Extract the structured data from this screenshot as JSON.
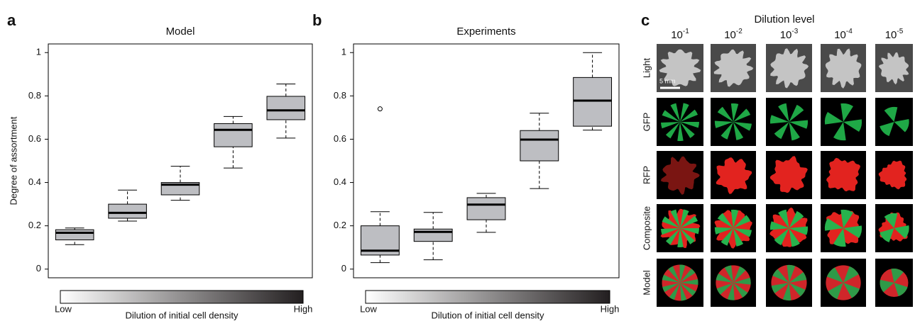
{
  "chart_data": [
    {
      "type": "box",
      "label": "a",
      "title": "Model",
      "ylabel": "Degree of assortment",
      "categories": [
        null,
        null,
        null,
        null,
        null
      ],
      "low": [
        0.113,
        0.222,
        0.318,
        0.467,
        0.605
      ],
      "q1": [
        0.135,
        0.235,
        0.343,
        0.565,
        0.69
      ],
      "median": [
        0.168,
        0.26,
        0.39,
        0.643,
        0.733
      ],
      "q3": [
        0.182,
        0.3,
        0.4,
        0.672,
        0.798
      ],
      "high": [
        0.19,
        0.365,
        0.475,
        0.705,
        0.855
      ],
      "outliers": [
        [],
        [],
        [],
        [],
        []
      ],
      "color": "#bdbec2",
      "ylim": [
        -0.04,
        1.04
      ],
      "yticks": [
        0,
        0.2,
        0.4,
        0.6,
        0.8,
        1
      ],
      "colorbar": {
        "low": "Low",
        "high": "High",
        "label": "Dilution of initial cell density"
      }
    },
    {
      "type": "box",
      "label": "b",
      "title": "Experiments",
      "categories": [
        null,
        null,
        null,
        null,
        null
      ],
      "low": [
        0.03,
        0.043,
        0.17,
        0.372,
        0.642
      ],
      "q1": [
        0.065,
        0.128,
        0.228,
        0.5,
        0.66
      ],
      "median": [
        0.085,
        0.172,
        0.298,
        0.598,
        0.778
      ],
      "q3": [
        0.2,
        0.185,
        0.33,
        0.64,
        0.885
      ],
      "high": [
        0.265,
        0.262,
        0.35,
        0.72,
        1.0
      ],
      "outliers": [
        [
          0.74
        ],
        [],
        [],
        [],
        []
      ],
      "color": "#bdbec2",
      "ylim": [
        -0.04,
        1.04
      ],
      "yticks": [
        0,
        0.2,
        0.4,
        0.6,
        0.8,
        1
      ],
      "colorbar": {
        "low": "Low",
        "high": "High",
        "label": "Dilution of initial cell density"
      }
    }
  ],
  "panel_c": {
    "label": "c",
    "title": "Dilution level",
    "columns": [
      {
        "base": "10",
        "exponent": "-1"
      },
      {
        "base": "10",
        "exponent": "-2"
      },
      {
        "base": "10",
        "exponent": "-3"
      },
      {
        "base": "10",
        "exponent": "-4"
      },
      {
        "base": "10",
        "exponent": "-5"
      }
    ],
    "rows": [
      "Light",
      "GFP",
      "RFP",
      "Composite",
      "Model"
    ],
    "scale_bar": "5 mm"
  }
}
